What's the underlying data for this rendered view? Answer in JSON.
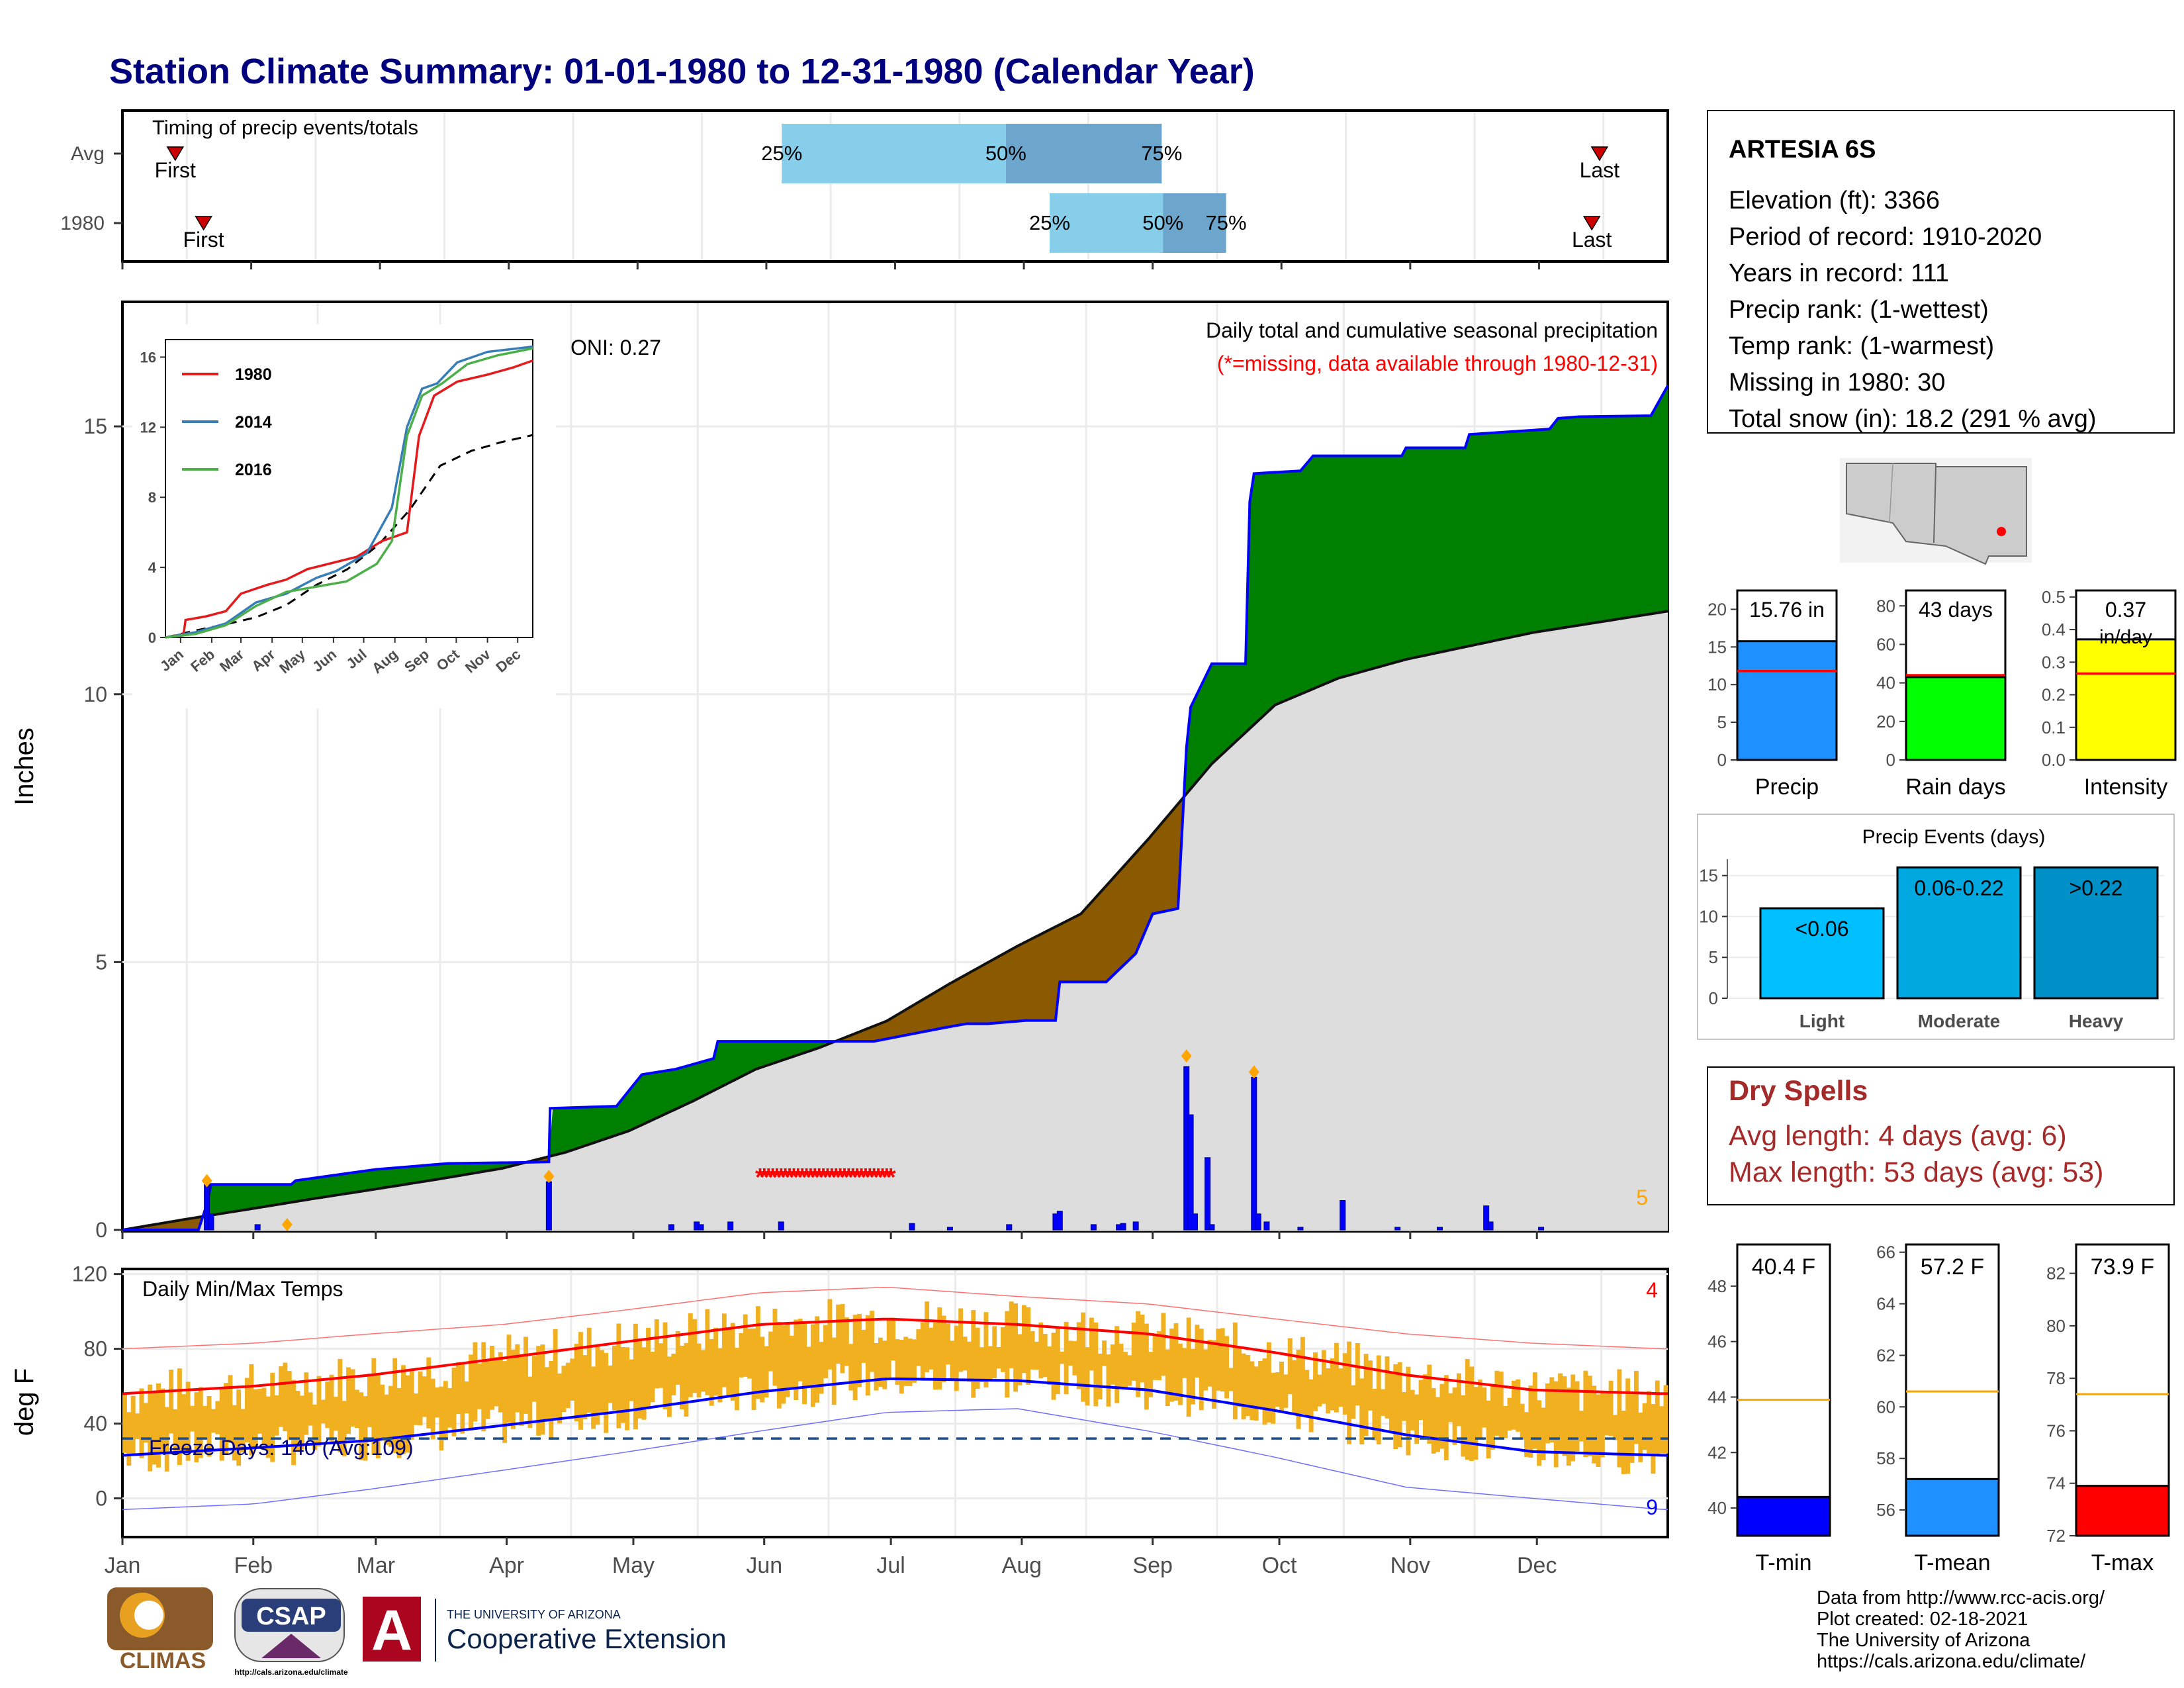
{
  "title": "Station Climate Summary: 01-01-1980 to 12-31-1980 (Calendar Year)",
  "station": {
    "name": "ARTESIA 6S",
    "lines": [
      "Elevation (ft): 3366",
      "Period of record: 1910-2020",
      "Years in record: 111",
      "Precip rank:  (1-wettest)",
      "Temp rank:  (1-warmest)",
      "Missing in 1980: 30",
      "Total snow (in): 18.2 (291 % avg)"
    ]
  },
  "footer": {
    "lines": [
      "Data from http://www.rcc-acis.org/",
      "Plot created: 02-18-2021",
      "The University of Arizona",
      "https://cals.arizona.edu/climate/"
    ],
    "logos": {
      "climas": "CLIMAS",
      "csap": "CSAP",
      "csap_url": "http://cals.arizona.edu/climate",
      "ua_small": "THE UNIVERSITY OF ARIZONA",
      "ua_ext": "Cooperative Extension"
    }
  },
  "chart_data": [
    {
      "id": "timing",
      "type": "bar",
      "title": "Timing of precip events/totals",
      "rows": [
        {
          "label": "Avg",
          "first_month": 1.41,
          "last_month": 12.47,
          "p25": 6.12,
          "p50": 7.86,
          "p75": 9.07
        },
        {
          "label": "1980",
          "first_month": 1.63,
          "last_month": 12.41,
          "p25": 8.2,
          "p50": 9.08,
          "p75": 9.57
        }
      ],
      "marker_labels": {
        "first": "First",
        "last": "Last"
      },
      "pct_labels": [
        "25%",
        "50%",
        "75%"
      ]
    },
    {
      "id": "precip_main",
      "type": "area",
      "title": "Daily total and cumulative seasonal precipitation",
      "subtitle": "(*=missing, data available through 1980-12-31)",
      "ylabel": "Inches",
      "ylim": [
        0,
        17.3
      ],
      "yticks": [
        0,
        5,
        10,
        15
      ],
      "oni": "ONI: 0.27",
      "corner_count": "5",
      "month_labels": [
        "Jan",
        "Feb",
        "Mar",
        "Apr",
        "May",
        "Jun",
        "Jul",
        "Aug",
        "Sep",
        "Oct",
        "Nov",
        "Dec"
      ],
      "cumulative_1980": [
        [
          0,
          0
        ],
        [
          18,
          0
        ],
        [
          20,
          0.48
        ],
        [
          21,
          0.85
        ],
        [
          40,
          0.85
        ],
        [
          41,
          0.92
        ],
        [
          60,
          1.13
        ],
        [
          77,
          1.24
        ],
        [
          95,
          1.26
        ],
        [
          101,
          1.27
        ],
        [
          101.3,
          2.27
        ],
        [
          117,
          2.31
        ],
        [
          123,
          2.9
        ],
        [
          131,
          3.0
        ],
        [
          140,
          3.2
        ],
        [
          141,
          3.52
        ],
        [
          177,
          3.52
        ],
        [
          178,
          3.52
        ],
        [
          195,
          3.78
        ],
        [
          200,
          3.85
        ],
        [
          205,
          3.85
        ],
        [
          214,
          3.91
        ],
        [
          216,
          3.91
        ],
        [
          221,
          3.91
        ],
        [
          222,
          4.63
        ],
        [
          233,
          4.63
        ],
        [
          240,
          5.16
        ],
        [
          244,
          5.9
        ],
        [
          250,
          6.0
        ],
        [
          252,
          9.0
        ],
        [
          253,
          9.76
        ],
        [
          258,
          10.57
        ],
        [
          266,
          10.57
        ],
        [
          267,
          13.6
        ],
        [
          268,
          14.12
        ],
        [
          279,
          14.17
        ],
        [
          282,
          14.45
        ],
        [
          303,
          14.45
        ],
        [
          304,
          14.6
        ],
        [
          318,
          14.6
        ],
        [
          319,
          14.85
        ],
        [
          338,
          14.95
        ],
        [
          340,
          15.15
        ],
        [
          345,
          15.18
        ],
        [
          362,
          15.2
        ],
        [
          366,
          15.76
        ]
      ],
      "avg_cumulative": [
        [
          0,
          0
        ],
        [
          15,
          0.2
        ],
        [
          31,
          0.4
        ],
        [
          45,
          0.58
        ],
        [
          59,
          0.75
        ],
        [
          75,
          0.95
        ],
        [
          90,
          1.15
        ],
        [
          105,
          1.45
        ],
        [
          120,
          1.85
        ],
        [
          135,
          2.4
        ],
        [
          150,
          3.0
        ],
        [
          165,
          3.4
        ],
        [
          181,
          3.9
        ],
        [
          196,
          4.6
        ],
        [
          212,
          5.3
        ],
        [
          227,
          5.9
        ],
        [
          243,
          7.3
        ],
        [
          258,
          8.7
        ],
        [
          273,
          9.8
        ],
        [
          288,
          10.3
        ],
        [
          304,
          10.65
        ],
        [
          319,
          10.9
        ],
        [
          334,
          11.15
        ],
        [
          350,
          11.35
        ],
        [
          366,
          11.55
        ]
      ],
      "daily_bars": [
        [
          20,
          0.85
        ],
        [
          21,
          0.3
        ],
        [
          32,
          0.1
        ],
        [
          101,
          0.9
        ],
        [
          130,
          0.1
        ],
        [
          136,
          0.15
        ],
        [
          137,
          0.1
        ],
        [
          144,
          0.15
        ],
        [
          156,
          0.15
        ],
        [
          187,
          0.12
        ],
        [
          196,
          0.05
        ],
        [
          210,
          0.1
        ],
        [
          221,
          0.3
        ],
        [
          222,
          0.35
        ],
        [
          230,
          0.1
        ],
        [
          236,
          0.1
        ],
        [
          237,
          0.12
        ],
        [
          240,
          0.15
        ],
        [
          252,
          3.05
        ],
        [
          253,
          2.15
        ],
        [
          254,
          0.3
        ],
        [
          257,
          1.35
        ],
        [
          258,
          0.1
        ],
        [
          268,
          2.85
        ],
        [
          269,
          0.3
        ],
        [
          271,
          0.15
        ],
        [
          279,
          0.05
        ],
        [
          289,
          0.55
        ],
        [
          302,
          0.05
        ],
        [
          312,
          0.05
        ],
        [
          323,
          0.45
        ],
        [
          324,
          0.15
        ],
        [
          336,
          0.05
        ]
      ],
      "missing_range_days": [
        151,
        182
      ],
      "missing_value_y": 1.0,
      "orange_markers": [
        [
          20,
          0.82
        ],
        [
          39,
          0.0
        ],
        [
          101,
          0.9
        ],
        [
          252,
          3.15
        ],
        [
          268,
          2.85
        ]
      ],
      "inset": {
        "yticks": [
          0,
          4,
          8,
          12,
          16
        ],
        "month_labels": [
          "Jan",
          "Feb",
          "Mar",
          "Apr",
          "May",
          "Jun",
          "Jul",
          "Aug",
          "Sep",
          "Oct",
          "Nov",
          "Dec"
        ],
        "series": [
          {
            "name": "1980",
            "color": "#e41a1c",
            "points": [
              [
                0,
                0
              ],
              [
                18,
                0.2
              ],
              [
                20,
                1.0
              ],
              [
                40,
                1.2
              ],
              [
                60,
                1.5
              ],
              [
                75,
                2.5
              ],
              [
                101,
                3.0
              ],
              [
                120,
                3.3
              ],
              [
                141,
                3.9
              ],
              [
                190,
                4.6
              ],
              [
                215,
                5.5
              ],
              [
                240,
                6.0
              ],
              [
                252,
                11.5
              ],
              [
                267,
                13.8
              ],
              [
                290,
                14.6
              ],
              [
                320,
                15.0
              ],
              [
                345,
                15.4
              ],
              [
                365,
                15.8
              ]
            ]
          },
          {
            "name": "2014",
            "color": "#377eb8",
            "points": [
              [
                0,
                0
              ],
              [
                30,
                0.3
              ],
              [
                60,
                0.8
              ],
              [
                90,
                2.0
              ],
              [
                120,
                2.5
              ],
              [
                150,
                3.4
              ],
              [
                170,
                3.8
              ],
              [
                200,
                4.8
              ],
              [
                225,
                7.4
              ],
              [
                240,
                12.0
              ],
              [
                255,
                14.2
              ],
              [
                270,
                14.5
              ],
              [
                290,
                15.7
              ],
              [
                320,
                16.3
              ],
              [
                365,
                16.6
              ]
            ]
          },
          {
            "name": "2016",
            "color": "#4daf4a",
            "points": [
              [
                0,
                0
              ],
              [
                30,
                0.2
              ],
              [
                60,
                0.7
              ],
              [
                90,
                1.8
              ],
              [
                120,
                2.6
              ],
              [
                150,
                2.9
              ],
              [
                180,
                3.2
              ],
              [
                210,
                4.2
              ],
              [
                225,
                5.5
              ],
              [
                240,
                11.5
              ],
              [
                255,
                13.8
              ],
              [
                275,
                14.5
              ],
              [
                300,
                15.6
              ],
              [
                330,
                16.1
              ],
              [
                365,
                16.5
              ]
            ]
          }
        ],
        "avg_series": [
          [
            0,
            0
          ],
          [
            30,
            0.4
          ],
          [
            60,
            0.75
          ],
          [
            90,
            1.15
          ],
          [
            120,
            1.85
          ],
          [
            150,
            3.0
          ],
          [
            181,
            3.9
          ],
          [
            212,
            5.3
          ],
          [
            243,
            7.3
          ],
          [
            273,
            9.8
          ],
          [
            304,
            10.65
          ],
          [
            334,
            11.15
          ],
          [
            365,
            11.55
          ]
        ]
      }
    },
    {
      "id": "temps",
      "type": "line",
      "title": "Daily Min/Max Temps",
      "ylabel": "deg F",
      "ylim": [
        -20,
        122
      ],
      "yticks": [
        0,
        40,
        80,
        120
      ],
      "freeze_label": "Freeze Days: 140 (Avg:109)",
      "freeze_line": 32,
      "record_high_count": "4",
      "record_low_count": "9",
      "month_labels": [
        "Jan",
        "Feb",
        "Mar",
        "Apr",
        "May",
        "Jun",
        "Jul",
        "Aug",
        "Sep",
        "Oct",
        "Nov",
        "Dec"
      ],
      "avg_max_knots": [
        [
          0,
          56
        ],
        [
          31,
          60
        ],
        [
          59,
          66
        ],
        [
          90,
          75
        ],
        [
          120,
          84
        ],
        [
          151,
          93
        ],
        [
          181,
          96
        ],
        [
          212,
          93
        ],
        [
          243,
          88
        ],
        [
          273,
          78
        ],
        [
          304,
          66
        ],
        [
          334,
          58
        ],
        [
          365,
          56
        ]
      ],
      "avg_min_knots": [
        [
          0,
          23
        ],
        [
          31,
          27
        ],
        [
          59,
          31
        ],
        [
          90,
          39
        ],
        [
          120,
          47
        ],
        [
          151,
          57
        ],
        [
          181,
          64
        ],
        [
          212,
          63
        ],
        [
          243,
          58
        ],
        [
          273,
          47
        ],
        [
          304,
          34
        ],
        [
          334,
          25
        ],
        [
          365,
          23
        ]
      ],
      "record_high_knots": [
        [
          0,
          80
        ],
        [
          31,
          83
        ],
        [
          59,
          88
        ],
        [
          90,
          93
        ],
        [
          120,
          101
        ],
        [
          151,
          110
        ],
        [
          181,
          113
        ],
        [
          212,
          108
        ],
        [
          243,
          104
        ],
        [
          273,
          96
        ],
        [
          304,
          88
        ],
        [
          334,
          83
        ],
        [
          365,
          80
        ]
      ],
      "record_low_knots": [
        [
          0,
          -6
        ],
        [
          31,
          -3
        ],
        [
          59,
          5
        ],
        [
          90,
          15
        ],
        [
          120,
          25
        ],
        [
          151,
          36
        ],
        [
          181,
          46
        ],
        [
          212,
          48
        ],
        [
          243,
          36
        ],
        [
          273,
          22
        ],
        [
          304,
          6
        ],
        [
          334,
          0
        ],
        [
          365,
          -6
        ]
      ]
    },
    {
      "id": "precip_summary",
      "type": "bar",
      "panels": [
        {
          "label": "Precip",
          "value": 15.76,
          "avg": 11.8,
          "display": "15.76 in",
          "ylim": [
            0,
            22.5
          ],
          "yticks": [
            0,
            5,
            10,
            15,
            20
          ],
          "color": "#1e90ff"
        },
        {
          "label": "Rain days",
          "value": 43,
          "avg": 44,
          "display": "43 days",
          "ylim": [
            0,
            88
          ],
          "yticks": [
            0,
            20,
            40,
            60,
            80
          ],
          "color": "#00ff00"
        },
        {
          "label": "Intensity",
          "value": 0.37,
          "avg": 0.265,
          "display": "0.37",
          "display2": "in/day",
          "ylim": [
            0,
            0.52
          ],
          "yticks": [
            0.0,
            0.1,
            0.2,
            0.3,
            0.4,
            0.5
          ],
          "color": "#ffff00"
        }
      ]
    },
    {
      "id": "precip_events",
      "type": "bar",
      "title": "Precip Events (days)",
      "categories": [
        "Light",
        "Moderate",
        "Heavy"
      ],
      "values": [
        11,
        16,
        16
      ],
      "bar_labels": [
        "<0.06",
        "0.06-0.22",
        ">0.22"
      ],
      "colors": [
        "#00bfff",
        "#00a8e0",
        "#0090c8"
      ],
      "ylim": [
        0,
        17
      ],
      "yticks": [
        0,
        5,
        10,
        15
      ]
    },
    {
      "id": "temp_summary",
      "type": "bar",
      "panels": [
        {
          "label": "T-min",
          "value": 40.4,
          "avg": 43.9,
          "display": "40.4 F",
          "ylim": [
            39,
            49.5
          ],
          "yticks": [
            40,
            42,
            44,
            46,
            48
          ],
          "color": "#0000ff"
        },
        {
          "label": "T-mean",
          "value": 57.2,
          "avg": 60.6,
          "display": "57.2 F",
          "ylim": [
            55,
            66.3
          ],
          "yticks": [
            56,
            58,
            60,
            62,
            64,
            66
          ],
          "color": "#1e90ff"
        },
        {
          "label": "T-max",
          "value": 73.9,
          "avg": 77.4,
          "display": "73.9 F",
          "ylim": [
            72,
            83.1
          ],
          "yticks": [
            72,
            74,
            76,
            78,
            80,
            82
          ],
          "color": "#ff0000"
        }
      ]
    }
  ],
  "dry_spells": {
    "title": "Dry Spells",
    "avg_line": "Avg length: 4 days (avg: 6)",
    "max_line": "Max length: 53 days (avg: 53)"
  },
  "colors": {
    "title": "#00007f",
    "above_avg_fill": "#008000",
    "below_avg_fill": "#8b5a00",
    "avg_fill": "#dddddd",
    "cum_line": "#0000ff",
    "warm_bar": "#f0b020",
    "max_line": "#ff0000",
    "min_line": "#0000ff",
    "dry_spells": "#a52a2a"
  }
}
